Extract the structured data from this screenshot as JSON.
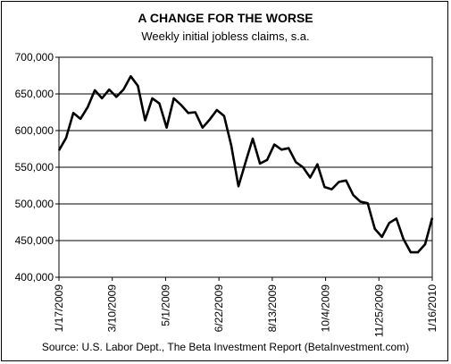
{
  "chart_data": {
    "type": "line",
    "title": "A CHANGE FOR THE WORSE",
    "subtitle": "Weekly initial jobless claims, s.a.",
    "source": "Source: U.S. Labor Dept., The Beta Investment Report (BetaInvestment.com)",
    "xlabel": "",
    "ylabel": "",
    "ylim": [
      400000,
      700000
    ],
    "yticks": [
      "400,000",
      "450,000",
      "500,000",
      "550,000",
      "600,000",
      "650,000",
      "700,000"
    ],
    "y_tick_values": [
      400000,
      450000,
      500000,
      550000,
      600000,
      650000,
      700000
    ],
    "xlim": [
      "1/17/2009",
      "1/16/2010"
    ],
    "x_ticks": [
      {
        "label": "1/17/2009",
        "date": "2009-01-17"
      },
      {
        "label": "3/10/2009",
        "date": "2009-03-10"
      },
      {
        "label": "5/1/2009",
        "date": "2009-05-01"
      },
      {
        "label": "6/22/2009",
        "date": "2009-06-22"
      },
      {
        "label": "8/13/2009",
        "date": "2009-08-13"
      },
      {
        "label": "10/4/2009",
        "date": "2009-10-04"
      },
      {
        "label": "11/25/2009",
        "date": "2009-11-25"
      },
      {
        "label": "1/16/2010",
        "date": "2010-01-16"
      }
    ],
    "grid": true,
    "line_color": "#000000",
    "series": [
      {
        "x": [
          "2009-01-17",
          "2009-01-24",
          "2009-01-31",
          "2009-02-07",
          "2009-02-14",
          "2009-02-21",
          "2009-02-28",
          "2009-03-07",
          "2009-03-14",
          "2009-03-21",
          "2009-03-28",
          "2009-04-04",
          "2009-04-11",
          "2009-04-18",
          "2009-04-25",
          "2009-05-02",
          "2009-05-09",
          "2009-05-16",
          "2009-05-23",
          "2009-05-30",
          "2009-06-06",
          "2009-06-13",
          "2009-06-20",
          "2009-06-27",
          "2009-07-04",
          "2009-07-11",
          "2009-07-18",
          "2009-07-25",
          "2009-08-01",
          "2009-08-08",
          "2009-08-15",
          "2009-08-22",
          "2009-08-29",
          "2009-09-05",
          "2009-09-12",
          "2009-09-19",
          "2009-09-26",
          "2009-10-03",
          "2009-10-10",
          "2009-10-17",
          "2009-10-24",
          "2009-10-31",
          "2009-11-07",
          "2009-11-14",
          "2009-11-21",
          "2009-11-28",
          "2009-12-05",
          "2009-12-12",
          "2009-12-19",
          "2009-12-26",
          "2010-01-02",
          "2010-01-09",
          "2010-01-16"
        ],
        "values": [
          573000,
          590000,
          624000,
          616000,
          632000,
          655000,
          644000,
          656000,
          646000,
          656000,
          674000,
          661000,
          614000,
          644000,
          637000,
          604000,
          644000,
          635000,
          624000,
          625000,
          604000,
          615000,
          628000,
          620000,
          580000,
          524000,
          557000,
          589000,
          555000,
          560000,
          581000,
          574000,
          576000,
          557000,
          550000,
          536000,
          554000,
          523000,
          520000,
          530000,
          532000,
          512000,
          503000,
          501000,
          466000,
          455000,
          474000,
          480000,
          452000,
          434000,
          434000,
          445000,
          481000
        ]
      }
    ]
  }
}
